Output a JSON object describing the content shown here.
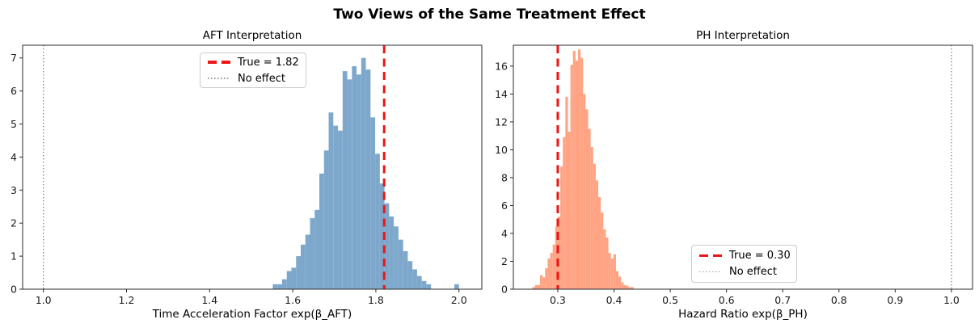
{
  "figure": {
    "title": "Two Views of the Same Treatment Effect",
    "background": "#ffffff"
  },
  "chart_data": [
    {
      "type": "bar",
      "subtype": "histogram",
      "title": "AFT Interpretation",
      "xlabel": "Time Acceleration Factor exp(β_AFT)",
      "ylabel": "",
      "xlim": [
        0.95,
        2.055
      ],
      "ylim": [
        0,
        7.385
      ],
      "xticks": [
        1.0,
        1.2,
        1.4,
        1.6,
        1.8,
        2.0
      ],
      "xtick_labels": [
        "1.0",
        "1.2",
        "1.4",
        "1.6",
        "1.8",
        "2.0"
      ],
      "yticks": [
        0,
        1,
        2,
        3,
        4,
        5,
        6,
        7
      ],
      "ytick_labels": [
        "0",
        "1",
        "2",
        "3",
        "4",
        "5",
        "6",
        "7"
      ],
      "grid": false,
      "bar_color": "#7EA8CB",
      "bin_start": 1.552,
      "bin_width": 0.0112,
      "bin_heights": [
        0.15,
        0.15,
        0.3,
        0.55,
        0.65,
        1.0,
        1.35,
        1.65,
        2.15,
        2.4,
        3.5,
        4.2,
        5.35,
        4.95,
        4.8,
        6.6,
        6.35,
        6.75,
        6.5,
        7.0,
        6.65,
        5.2,
        4.1,
        3.2,
        2.6,
        2.2,
        1.9,
        1.5,
        1.15,
        0.85,
        0.6,
        0.4,
        0.25,
        0.15,
        0,
        0,
        0,
        0,
        0,
        0.15
      ],
      "vlines": [
        {
          "x": 1.82,
          "style": "dashed",
          "color": "#ED1515",
          "label": "True = 1.82",
          "name": "true-value-line-aft"
        },
        {
          "x": 1.0,
          "style": "dotted",
          "color": "#7f7f7f",
          "label": "No effect",
          "name": "no-effect-line-aft"
        }
      ],
      "legend_position": "upper center"
    },
    {
      "type": "bar",
      "subtype": "histogram",
      "title": "PH Interpretation",
      "xlabel": "Hazard Ratio exp(β_PH)",
      "ylabel": "",
      "xlim": [
        0.221,
        1.0375
      ],
      "ylim": [
        0,
        17.5
      ],
      "xticks": [
        0.3,
        0.4,
        0.5,
        0.6,
        0.7,
        0.8,
        0.9,
        1.0
      ],
      "xtick_labels": [
        "0.3",
        "0.4",
        "0.5",
        "0.6",
        "0.7",
        "0.8",
        "0.9",
        "1.0"
      ],
      "yticks": [
        0,
        2,
        4,
        6,
        8,
        10,
        12,
        14,
        16
      ],
      "ytick_labels": [
        "0",
        "2",
        "4",
        "6",
        "8",
        "10",
        "12",
        "14",
        "16"
      ],
      "grid": false,
      "bar_color": "#FFA383",
      "bin_start": 0.255,
      "bin_width": 0.0045,
      "bin_heights": [
        0.15,
        0.3,
        0.3,
        1.0,
        0.85,
        1.5,
        2.2,
        2.6,
        3.2,
        4.5,
        5.2,
        8.8,
        10.9,
        13.8,
        11.3,
        16.1,
        17.1,
        16.4,
        17.2,
        16.6,
        14.0,
        12.9,
        11.5,
        10.2,
        9.0,
        7.8,
        6.6,
        5.5,
        4.3,
        3.7,
        2.6,
        2.2,
        2.5,
        1.3,
        0.9,
        0.5,
        0.3,
        0.25,
        0.15,
        0.15
      ],
      "vlines": [
        {
          "x": 0.3,
          "style": "dashed",
          "color": "#ED1515",
          "label": "True = 0.30",
          "name": "true-value-line-ph"
        },
        {
          "x": 1.0,
          "style": "dotted",
          "color": "#7f7f7f",
          "label": "No effect",
          "name": "no-effect-line-ph"
        }
      ],
      "legend_position": "lower center"
    }
  ]
}
